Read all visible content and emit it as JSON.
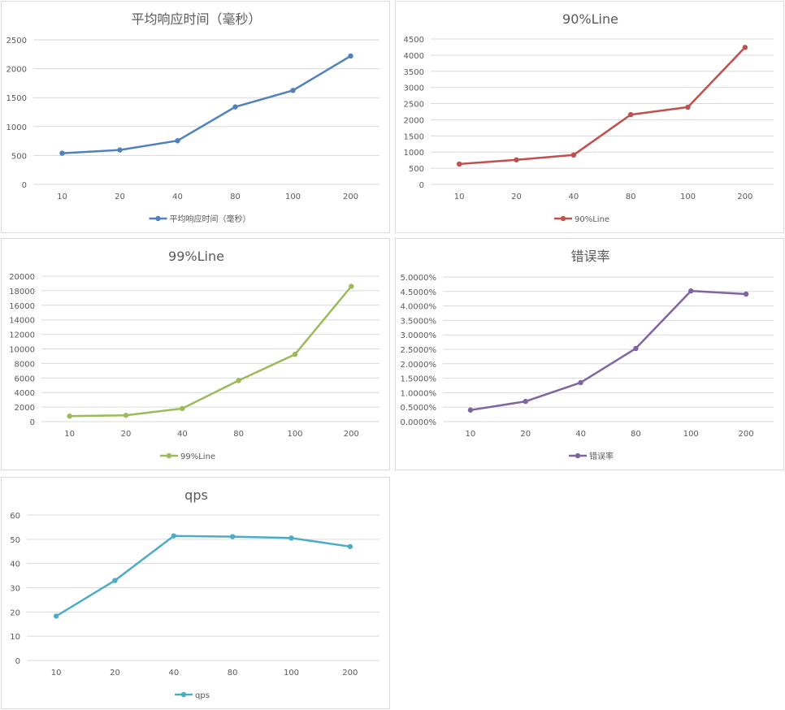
{
  "chart_data": [
    {
      "type": "line",
      "title": "平均响应时间（毫秒）",
      "categories": [
        "10",
        "20",
        "40",
        "80",
        "100",
        "200"
      ],
      "series": [
        {
          "name": "平均响应时间（毫秒）",
          "values": [
            540,
            595,
            755,
            1340,
            1625,
            2220
          ]
        }
      ],
      "ylim": [
        0,
        2500
      ],
      "yticks": [
        "0",
        "500",
        "1000",
        "1500",
        "2000",
        "2500"
      ],
      "color": "#4f81bd",
      "grid": true,
      "legend_position": "bottom"
    },
    {
      "type": "line",
      "title": "90%Line",
      "categories": [
        "10",
        "20",
        "40",
        "80",
        "100",
        "200"
      ],
      "series": [
        {
          "name": "90%Line",
          "values": [
            630,
            760,
            910,
            2160,
            2390,
            4240
          ]
        }
      ],
      "ylim": [
        0,
        4500
      ],
      "yticks": [
        "0",
        "500",
        "1000",
        "1500",
        "2000",
        "2500",
        "3000",
        "3500",
        "4000",
        "4500"
      ],
      "color": "#c0504d",
      "grid": true,
      "legend_position": "bottom"
    },
    {
      "type": "line",
      "title": "99%Line",
      "categories": [
        "10",
        "20",
        "40",
        "80",
        "100",
        "200"
      ],
      "series": [
        {
          "name": "99%Line",
          "values": [
            760,
            870,
            1800,
            5650,
            9250,
            18600
          ]
        }
      ],
      "ylim": [
        0,
        20000
      ],
      "yticks": [
        "0",
        "2000",
        "4000",
        "6000",
        "8000",
        "10000",
        "12000",
        "14000",
        "16000",
        "18000",
        "20000"
      ],
      "color": "#9bbb59",
      "grid": true,
      "legend_position": "bottom"
    },
    {
      "type": "line",
      "title": "错误率",
      "categories": [
        "10",
        "20",
        "40",
        "80",
        "100",
        "200"
      ],
      "series": [
        {
          "name": "错误率",
          "values": [
            0.004,
            0.007,
            0.0135,
            0.0253,
            0.0452,
            0.0441
          ]
        }
      ],
      "ylim": [
        0,
        0.05
      ],
      "yticks": [
        "0.0000%",
        "0.5000%",
        "1.0000%",
        "1.5000%",
        "2.0000%",
        "2.5000%",
        "3.0000%",
        "3.5000%",
        "4.0000%",
        "4.5000%",
        "5.0000%"
      ],
      "color": "#8064a2",
      "grid": true,
      "legend_position": "bottom"
    },
    {
      "type": "line",
      "title": "qps",
      "categories": [
        "10",
        "20",
        "40",
        "80",
        "100",
        "200"
      ],
      "series": [
        {
          "name": "qps",
          "values": [
            18.3,
            33,
            51.4,
            51.1,
            50.5,
            47
          ]
        }
      ],
      "ylim": [
        0,
        60
      ],
      "yticks": [
        "0",
        "10",
        "20",
        "30",
        "40",
        "50",
        "60"
      ],
      "color": "#4bacc6",
      "grid": true,
      "legend_position": "bottom"
    }
  ]
}
